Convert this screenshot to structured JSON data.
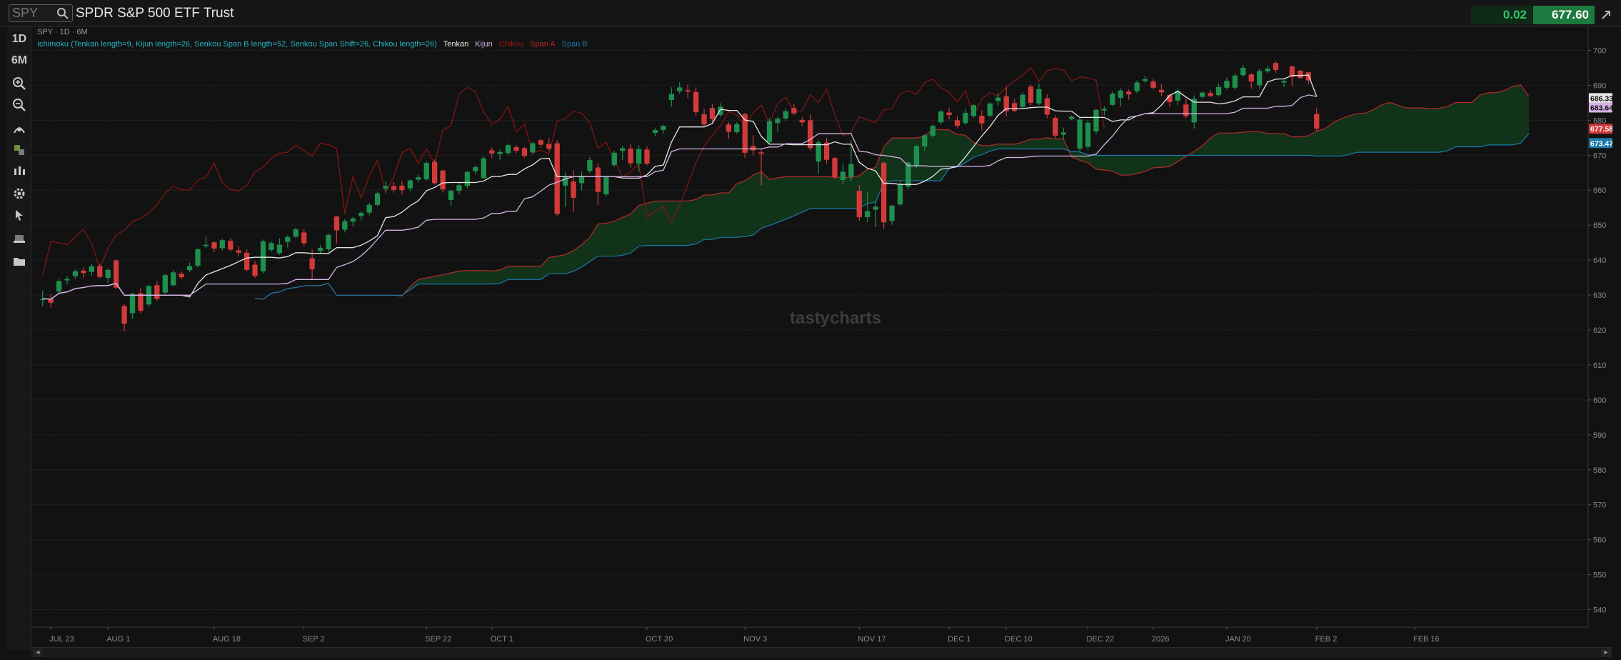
{
  "header": {
    "symbol": "SPY",
    "instrument_name": "SPDR S&P 500 ETF Trust",
    "change": "0.02",
    "price": "677.60"
  },
  "toolbar": {
    "timeframe_interval": "1D",
    "timeframe_range": "6M",
    "tools": [
      "zoom-in-icon",
      "zoom-out-icon",
      "drawing-tools-icon",
      "style-icon",
      "studies-icon",
      "settings-icon",
      "cursor-icon",
      "layers-icon",
      "folder-icon"
    ]
  },
  "chart": {
    "study_title": "SPY · 1D · 6M",
    "study_legend": {
      "ichimoku": "Ichimoku (Tenkan length=9, Kijun length=26, Senkou Span B length=52, Senkou Span Shift=26, Chikou length=26)",
      "tenkan": "Tenkan",
      "kijun": "Kijun",
      "chikou": "Chikou",
      "span_a": "Span A",
      "span_b": "Span B"
    },
    "watermark": "tastycharts",
    "colors": {
      "background": "#121212",
      "up": "#1f8f4e",
      "down": "#d23a3a",
      "tenkan": "#e6e6e6",
      "kijun": "#d6b4e6",
      "chikou": "#8a1414",
      "span_a": "#b52a2a",
      "span_b": "#1a7aa8",
      "cloud": "#123a1c",
      "legend_text": "#27b4c0"
    },
    "price_labels": [
      {
        "label": "686.33",
        "value": 686.33,
        "bg": "#e6e6e6",
        "fg": "#111111"
      },
      {
        "label": "683.64",
        "value": 683.64,
        "bg": "#d6b4e6",
        "fg": "#111111"
      },
      {
        "label": "677.58",
        "value": 677.58,
        "bg": "#d23a3a",
        "fg": "#ffffff"
      },
      {
        "label": "673.47",
        "value": 673.47,
        "bg": "#1a7aa8",
        "fg": "#ffffff"
      }
    ]
  },
  "chart_data": {
    "type": "candlestick",
    "y_axis": {
      "ticks": [
        540,
        550,
        560,
        570,
        580,
        590,
        600,
        610,
        620,
        630,
        640,
        650,
        660,
        670,
        680,
        690,
        700
      ]
    },
    "x_axis": {
      "tick_labels": [
        "JUL 23",
        "AUG 1",
        "AUG 18",
        "SEP 2",
        "SEP 22",
        "OCT 1",
        "OCT 20",
        "NOV 3",
        "NOV 17",
        "DEC 1",
        "DEC 10",
        "DEC 22",
        "2026",
        "JAN 20",
        "FEB 2",
        "FEB 16"
      ]
    },
    "candles": [
      {
        "o": 628.6,
        "h": 631.2,
        "l": 626.8,
        "c": 628.8
      },
      {
        "o": 628.9,
        "h": 630.2,
        "l": 626.4,
        "c": 627.8
      },
      {
        "o": 631.0,
        "h": 634.6,
        "l": 630.1,
        "c": 634.0
      },
      {
        "o": 634.2,
        "h": 635.4,
        "l": 633.0,
        "c": 634.6
      },
      {
        "o": 635.4,
        "h": 637.3,
        "l": 634.7,
        "c": 636.8
      },
      {
        "o": 637.0,
        "h": 637.9,
        "l": 635.0,
        "c": 636.3
      },
      {
        "o": 636.6,
        "h": 638.8,
        "l": 635.5,
        "c": 638.2
      },
      {
        "o": 638.3,
        "h": 639.0,
        "l": 634.8,
        "c": 635.2
      },
      {
        "o": 634.9,
        "h": 637.6,
        "l": 633.5,
        "c": 637.2
      },
      {
        "o": 639.9,
        "h": 640.3,
        "l": 631.7,
        "c": 632.1
      },
      {
        "o": 626.9,
        "h": 627.4,
        "l": 619.6,
        "c": 621.8
      },
      {
        "o": 624.8,
        "h": 630.7,
        "l": 623.2,
        "c": 630.3
      },
      {
        "o": 630.5,
        "h": 632.1,
        "l": 624.8,
        "c": 625.5
      },
      {
        "o": 627.3,
        "h": 632.9,
        "l": 626.6,
        "c": 632.6
      },
      {
        "o": 632.8,
        "h": 634.0,
        "l": 628.4,
        "c": 628.9
      },
      {
        "o": 630.7,
        "h": 636.0,
        "l": 630.3,
        "c": 635.7
      },
      {
        "o": 632.8,
        "h": 637.1,
        "l": 632.4,
        "c": 636.5
      },
      {
        "o": 636.1,
        "h": 636.8,
        "l": 634.5,
        "c": 635.1
      },
      {
        "o": 637.1,
        "h": 639.3,
        "l": 636.5,
        "c": 638.3
      },
      {
        "o": 638.4,
        "h": 643.4,
        "l": 637.8,
        "c": 643.1
      },
      {
        "o": 644.0,
        "h": 646.7,
        "l": 643.5,
        "c": 644.4
      },
      {
        "o": 645.1,
        "h": 645.4,
        "l": 642.3,
        "c": 643.3
      },
      {
        "o": 643.4,
        "h": 646.2,
        "l": 642.8,
        "c": 645.7
      },
      {
        "o": 645.5,
        "h": 646.3,
        "l": 642.5,
        "c": 643.0
      },
      {
        "o": 642.8,
        "h": 644.1,
        "l": 641.0,
        "c": 642.1
      },
      {
        "o": 642.1,
        "h": 643.0,
        "l": 636.8,
        "c": 637.2
      },
      {
        "o": 638.7,
        "h": 639.8,
        "l": 634.9,
        "c": 635.5
      },
      {
        "o": 636.8,
        "h": 645.9,
        "l": 636.2,
        "c": 645.4
      },
      {
        "o": 642.9,
        "h": 645.4,
        "l": 642.2,
        "c": 644.9
      },
      {
        "o": 642.0,
        "h": 646.2,
        "l": 641.5,
        "c": 644.4
      },
      {
        "o": 645.2,
        "h": 647.1,
        "l": 643.6,
        "c": 646.6
      },
      {
        "o": 646.7,
        "h": 649.3,
        "l": 646.2,
        "c": 648.8
      },
      {
        "o": 647.9,
        "h": 648.8,
        "l": 644.1,
        "c": 644.8
      },
      {
        "o": 640.5,
        "h": 643.1,
        "l": 634.5,
        "c": 637.4
      },
      {
        "o": 642.6,
        "h": 644.3,
        "l": 641.7,
        "c": 643.5
      },
      {
        "o": 643.1,
        "h": 647.6,
        "l": 642.3,
        "c": 647.2
      },
      {
        "o": 652.5,
        "h": 652.6,
        "l": 644.8,
        "c": 648.5
      },
      {
        "o": 648.7,
        "h": 651.7,
        "l": 647.9,
        "c": 651.1
      },
      {
        "o": 651.0,
        "h": 652.3,
        "l": 649.5,
        "c": 651.9
      },
      {
        "o": 652.6,
        "h": 654.0,
        "l": 651.4,
        "c": 653.5
      },
      {
        "o": 653.6,
        "h": 656.4,
        "l": 652.8,
        "c": 655.8
      },
      {
        "o": 655.8,
        "h": 659.5,
        "l": 655.4,
        "c": 659.1
      },
      {
        "o": 660.4,
        "h": 662.6,
        "l": 659.0,
        "c": 661.2
      },
      {
        "o": 661.2,
        "h": 662.4,
        "l": 659.3,
        "c": 660.1
      },
      {
        "o": 661.3,
        "h": 662.6,
        "l": 658.9,
        "c": 660.0
      },
      {
        "o": 660.5,
        "h": 663.2,
        "l": 659.7,
        "c": 662.8
      },
      {
        "o": 663.0,
        "h": 664.4,
        "l": 662.2,
        "c": 663.7
      },
      {
        "o": 663.1,
        "h": 668.3,
        "l": 662.8,
        "c": 667.8
      },
      {
        "o": 668.1,
        "h": 668.8,
        "l": 661.6,
        "c": 662.0
      },
      {
        "o": 665.6,
        "h": 665.9,
        "l": 659.3,
        "c": 660.2
      },
      {
        "o": 657.2,
        "h": 660.1,
        "l": 655.6,
        "c": 659.8
      },
      {
        "o": 659.8,
        "h": 662.1,
        "l": 658.8,
        "c": 661.4
      },
      {
        "o": 661.2,
        "h": 665.6,
        "l": 660.6,
        "c": 665.2
      },
      {
        "o": 665.4,
        "h": 667.1,
        "l": 664.5,
        "c": 666.6
      },
      {
        "o": 663.4,
        "h": 669.6,
        "l": 663.3,
        "c": 669.1
      },
      {
        "o": 671.4,
        "h": 672.2,
        "l": 669.3,
        "c": 670.5
      },
      {
        "o": 670.3,
        "h": 671.8,
        "l": 668.7,
        "c": 670.9
      },
      {
        "o": 670.6,
        "h": 673.4,
        "l": 670.0,
        "c": 672.9
      },
      {
        "o": 672.3,
        "h": 672.8,
        "l": 670.5,
        "c": 671.3
      },
      {
        "o": 672.0,
        "h": 672.4,
        "l": 669.3,
        "c": 669.8
      },
      {
        "o": 670.8,
        "h": 673.9,
        "l": 670.2,
        "c": 673.4
      },
      {
        "o": 674.3,
        "h": 674.7,
        "l": 672.1,
        "c": 673.0
      },
      {
        "o": 673.2,
        "h": 675.0,
        "l": 671.2,
        "c": 671.9
      },
      {
        "o": 673.4,
        "h": 674.3,
        "l": 652.7,
        "c": 653.2
      },
      {
        "o": 661.3,
        "h": 665.1,
        "l": 655.3,
        "c": 663.9
      },
      {
        "o": 662.5,
        "h": 665.7,
        "l": 653.8,
        "c": 657.8
      },
      {
        "o": 662.0,
        "h": 665.3,
        "l": 660.0,
        "c": 664.1
      },
      {
        "o": 665.5,
        "h": 669.5,
        "l": 664.9,
        "c": 668.6
      },
      {
        "o": 666.5,
        "h": 667.7,
        "l": 655.7,
        "c": 659.5
      },
      {
        "o": 658.8,
        "h": 664.2,
        "l": 658.1,
        "c": 663.8
      },
      {
        "o": 667.2,
        "h": 671.2,
        "l": 666.6,
        "c": 670.7
      },
      {
        "o": 671.2,
        "h": 672.7,
        "l": 668.6,
        "c": 672.0
      },
      {
        "o": 671.9,
        "h": 673.1,
        "l": 666.5,
        "c": 667.7
      },
      {
        "o": 667.6,
        "h": 672.8,
        "l": 665.3,
        "c": 671.8
      },
      {
        "o": 671.6,
        "h": 672.6,
        "l": 667.2,
        "c": 667.6
      },
      {
        "o": 676.4,
        "h": 677.9,
        "l": 675.4,
        "c": 677.2
      },
      {
        "o": 677.2,
        "h": 678.7,
        "l": 676.2,
        "c": 678.4
      },
      {
        "o": 685.8,
        "h": 689.4,
        "l": 683.9,
        "c": 687.5
      },
      {
        "o": 688.3,
        "h": 690.9,
        "l": 687.6,
        "c": 689.4
      },
      {
        "o": 688.6,
        "h": 690.2,
        "l": 686.3,
        "c": 688.2
      },
      {
        "o": 688.1,
        "h": 689.4,
        "l": 681.3,
        "c": 682.3
      },
      {
        "o": 681.7,
        "h": 683.2,
        "l": 677.9,
        "c": 678.8
      },
      {
        "o": 683.5,
        "h": 684.7,
        "l": 679.4,
        "c": 680.3
      },
      {
        "o": 681.5,
        "h": 684.9,
        "l": 680.9,
        "c": 683.9
      },
      {
        "o": 678.8,
        "h": 679.5,
        "l": 674.7,
        "c": 676.7
      },
      {
        "o": 676.6,
        "h": 679.4,
        "l": 676.1,
        "c": 678.9
      },
      {
        "o": 681.8,
        "h": 682.1,
        "l": 669.2,
        "c": 670.7
      },
      {
        "o": 672.6,
        "h": 675.7,
        "l": 670.0,
        "c": 671.4
      },
      {
        "o": 670.8,
        "h": 671.8,
        "l": 661.4,
        "c": 670.4
      },
      {
        "o": 673.8,
        "h": 680.6,
        "l": 673.2,
        "c": 679.7
      },
      {
        "o": 679.2,
        "h": 681.0,
        "l": 676.7,
        "c": 680.5
      },
      {
        "o": 680.5,
        "h": 683.4,
        "l": 679.8,
        "c": 682.6
      },
      {
        "o": 683.5,
        "h": 684.6,
        "l": 681.5,
        "c": 682.0
      },
      {
        "o": 680.1,
        "h": 681.0,
        "l": 678.3,
        "c": 679.4
      },
      {
        "o": 680.0,
        "h": 681.6,
        "l": 671.3,
        "c": 672.0
      },
      {
        "o": 668.2,
        "h": 674.3,
        "l": 664.7,
        "c": 673.7
      },
      {
        "o": 673.6,
        "h": 674.9,
        "l": 667.6,
        "c": 668.7
      },
      {
        "o": 669.2,
        "h": 669.5,
        "l": 663.1,
        "c": 663.7
      },
      {
        "o": 662.9,
        "h": 667.7,
        "l": 661.7,
        "c": 665.3
      },
      {
        "o": 663.8,
        "h": 674.3,
        "l": 662.5,
        "c": 667.5
      },
      {
        "o": 659.8,
        "h": 661.4,
        "l": 651.3,
        "c": 652.3
      },
      {
        "o": 652.3,
        "h": 659.6,
        "l": 650.9,
        "c": 654.0
      },
      {
        "o": 654.4,
        "h": 656.8,
        "l": 649.4,
        "c": 655.3
      },
      {
        "o": 667.8,
        "h": 668.2,
        "l": 649.0,
        "c": 650.8
      },
      {
        "o": 651.2,
        "h": 655.6,
        "l": 650.1,
        "c": 655.6
      },
      {
        "o": 655.9,
        "h": 662.9,
        "l": 655.5,
        "c": 661.6
      },
      {
        "o": 661.0,
        "h": 668.3,
        "l": 660.4,
        "c": 667.9
      },
      {
        "o": 666.9,
        "h": 672.8,
        "l": 666.4,
        "c": 672.6
      },
      {
        "o": 672.5,
        "h": 676.1,
        "l": 671.3,
        "c": 675.7
      },
      {
        "o": 675.6,
        "h": 678.9,
        "l": 675.0,
        "c": 678.4
      },
      {
        "o": 679.4,
        "h": 683.0,
        "l": 678.8,
        "c": 682.5
      },
      {
        "o": 682.2,
        "h": 683.5,
        "l": 680.2,
        "c": 681.5
      },
      {
        "o": 680.0,
        "h": 681.3,
        "l": 677.7,
        "c": 678.4
      },
      {
        "o": 679.2,
        "h": 683.2,
        "l": 678.7,
        "c": 682.1
      },
      {
        "o": 681.2,
        "h": 684.6,
        "l": 680.7,
        "c": 684.3
      },
      {
        "o": 681.3,
        "h": 682.9,
        "l": 677.0,
        "c": 679.1
      },
      {
        "o": 681.3,
        "h": 685.1,
        "l": 680.7,
        "c": 684.8
      },
      {
        "o": 685.5,
        "h": 687.8,
        "l": 684.2,
        "c": 686.5
      },
      {
        "o": 686.9,
        "h": 689.7,
        "l": 681.2,
        "c": 682.6
      },
      {
        "o": 684.9,
        "h": 686.1,
        "l": 682.3,
        "c": 682.7
      },
      {
        "o": 683.8,
        "h": 688.0,
        "l": 683.2,
        "c": 687.3
      },
      {
        "o": 689.6,
        "h": 690.2,
        "l": 684.2,
        "c": 685.0
      },
      {
        "o": 684.8,
        "h": 690.5,
        "l": 684.3,
        "c": 688.9
      },
      {
        "o": 686.3,
        "h": 687.4,
        "l": 680.6,
        "c": 681.6
      },
      {
        "o": 680.7,
        "h": 681.4,
        "l": 674.9,
        "c": 675.6
      },
      {
        "o": 675.9,
        "h": 677.9,
        "l": 674.7,
        "c": 676.5
      },
      {
        "o": 680.3,
        "h": 681.4,
        "l": 680.0,
        "c": 681.0
      },
      {
        "o": 671.9,
        "h": 680.8,
        "l": 671.1,
        "c": 680.2
      },
      {
        "o": 672.4,
        "h": 680.0,
        "l": 671.6,
        "c": 679.3
      },
      {
        "o": 676.8,
        "h": 683.2,
        "l": 676.0,
        "c": 683.0
      },
      {
        "o": 682.8,
        "h": 684.0,
        "l": 681.4,
        "c": 683.3
      },
      {
        "o": 684.4,
        "h": 688.2,
        "l": 684.1,
        "c": 687.6
      },
      {
        "o": 686.4,
        "h": 689.1,
        "l": 683.9,
        "c": 688.5
      },
      {
        "o": 688.2,
        "h": 688.8,
        "l": 685.9,
        "c": 687.4
      },
      {
        "o": 688.3,
        "h": 691.4,
        "l": 687.7,
        "c": 690.8
      },
      {
        "o": 691.2,
        "h": 692.7,
        "l": 690.7,
        "c": 691.8
      },
      {
        "o": 691.1,
        "h": 691.8,
        "l": 688.9,
        "c": 689.3
      },
      {
        "o": 688.7,
        "h": 690.4,
        "l": 686.9,
        "c": 688.0
      },
      {
        "o": 687.2,
        "h": 687.4,
        "l": 683.9,
        "c": 685.2
      },
      {
        "o": 685.6,
        "h": 689.0,
        "l": 684.3,
        "c": 688.4
      },
      {
        "o": 684.5,
        "h": 686.1,
        "l": 680.6,
        "c": 681.2
      },
      {
        "o": 679.4,
        "h": 687.1,
        "l": 677.6,
        "c": 686.1
      },
      {
        "o": 686.7,
        "h": 688.2,
        "l": 686.1,
        "c": 687.9
      },
      {
        "o": 687.8,
        "h": 688.7,
        "l": 686.6,
        "c": 686.9
      },
      {
        "o": 687.2,
        "h": 690.5,
        "l": 686.8,
        "c": 689.5
      },
      {
        "o": 689.3,
        "h": 692.3,
        "l": 688.8,
        "c": 691.3
      },
      {
        "o": 689.3,
        "h": 693.5,
        "l": 688.7,
        "c": 692.8
      },
      {
        "o": 692.9,
        "h": 695.8,
        "l": 692.4,
        "c": 695.0
      },
      {
        "o": 693.1,
        "h": 693.4,
        "l": 689.0,
        "c": 691.1
      },
      {
        "o": 690.0,
        "h": 694.8,
        "l": 689.0,
        "c": 694.1
      },
      {
        "o": 694.0,
        "h": 695.5,
        "l": 693.4,
        "c": 694.8
      },
      {
        "o": 696.4,
        "h": 696.9,
        "l": 693.6,
        "c": 694.4
      },
      {
        "o": 690.8,
        "h": 692.0,
        "l": 689.5,
        "c": 691.2
      },
      {
        "o": 695.4,
        "h": 695.6,
        "l": 689.8,
        "c": 692.4
      },
      {
        "o": 694.2,
        "h": 694.4,
        "l": 691.7,
        "c": 692.1
      },
      {
        "o": 693.7,
        "h": 693.9,
        "l": 690.3,
        "c": 691.4
      },
      {
        "o": 681.8,
        "h": 683.4,
        "l": 676.7,
        "c": 677.6
      }
    ]
  }
}
